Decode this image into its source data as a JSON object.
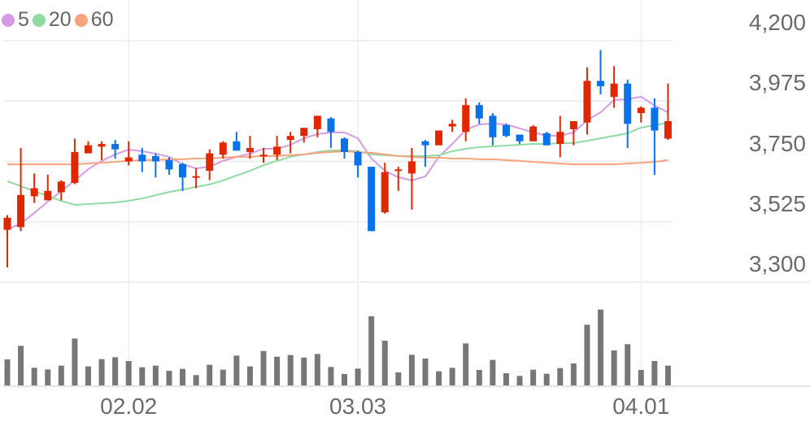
{
  "chart_data": {
    "type": "candlestick",
    "title": "",
    "legend": {
      "placement": "top-left",
      "items": [
        {
          "label": "5",
          "color": "#d69ae6"
        },
        {
          "label": "20",
          "color": "#8fdca2"
        },
        {
          "label": "60",
          "color": "#f5a47c"
        }
      ]
    },
    "colors": {
      "up": "#e02800",
      "down": "#0a72e6",
      "volume": "#777777",
      "grid": "#eeeeee"
    },
    "ylim": [
      3300,
      4200
    ],
    "y_ticks": [
      "4,200",
      "3,975",
      "3,750",
      "3,525",
      "3,300"
    ],
    "y_tick_values": [
      4200,
      3975,
      3750,
      3525,
      3300
    ],
    "x_ticks": [
      {
        "label": "02.02",
        "index": 9
      },
      {
        "label": "03.03",
        "index": 26
      },
      {
        "label": "04.01",
        "index": 47
      }
    ],
    "grid": true,
    "ohlc": [
      [
        3495,
        3550,
        3355,
        3540
      ],
      [
        3505,
        3800,
        3490,
        3625
      ],
      [
        3620,
        3705,
        3595,
        3650
      ],
      [
        3605,
        3700,
        3605,
        3640
      ],
      [
        3635,
        3680,
        3605,
        3675
      ],
      [
        3670,
        3835,
        3665,
        3785
      ],
      [
        3780,
        3825,
        3780,
        3810
      ],
      [
        3805,
        3825,
        3755,
        3815
      ],
      [
        3815,
        3830,
        3760,
        3795
      ],
      [
        3750,
        3825,
        3735,
        3765
      ],
      [
        3775,
        3800,
        3710,
        3750
      ],
      [
        3770,
        3780,
        3690,
        3750
      ],
      [
        3755,
        3765,
        3700,
        3720
      ],
      [
        3740,
        3745,
        3640,
        3690
      ],
      [
        3690,
        3725,
        3650,
        3695
      ],
      [
        3715,
        3795,
        3680,
        3780
      ],
      [
        3775,
        3825,
        3760,
        3820
      ],
      [
        3825,
        3860,
        3790,
        3790
      ],
      [
        3785,
        3845,
        3760,
        3800
      ],
      [
        3770,
        3800,
        3745,
        3775
      ],
      [
        3775,
        3845,
        3755,
        3805
      ],
      [
        3830,
        3860,
        3780,
        3845
      ],
      [
        3845,
        3875,
        3820,
        3875
      ],
      [
        3870,
        3920,
        3840,
        3920
      ],
      [
        3910,
        3915,
        3800,
        3860
      ],
      [
        3835,
        3840,
        3760,
        3785
      ],
      [
        3785,
        3790,
        3690,
        3735
      ],
      [
        3730,
        3730,
        3490,
        3490
      ],
      [
        3560,
        3745,
        3555,
        3710
      ],
      [
        3715,
        3730,
        3640,
        3720
      ],
      [
        3705,
        3800,
        3570,
        3750
      ],
      [
        3825,
        3830,
        3730,
        3810
      ],
      [
        3810,
        3865,
        3810,
        3865
      ],
      [
        3880,
        3905,
        3860,
        3890
      ],
      [
        3860,
        3985,
        3825,
        3960
      ],
      [
        3960,
        3970,
        3890,
        3910
      ],
      [
        3920,
        3930,
        3810,
        3840
      ],
      [
        3885,
        3890,
        3840,
        3845
      ],
      [
        3850,
        3850,
        3815,
        3825
      ],
      [
        3825,
        3885,
        3825,
        3880
      ],
      [
        3855,
        3860,
        3810,
        3810
      ],
      [
        3815,
        3920,
        3765,
        3860
      ],
      [
        3870,
        3900,
        3810,
        3900
      ],
      [
        3895,
        4100,
        3850,
        4050
      ],
      [
        4050,
        4165,
        4000,
        4030
      ],
      [
        3990,
        4105,
        3950,
        4040
      ],
      [
        4040,
        4055,
        3800,
        3890
      ],
      [
        3930,
        3955,
        3895,
        3950
      ],
      [
        3950,
        3985,
        3700,
        3865
      ],
      [
        3835,
        4040,
        3830,
        3900
      ]
    ],
    "ma": [
      {
        "name": "5",
        "values": [
          3497,
          3518,
          3558,
          3600,
          3639,
          3679,
          3721,
          3752,
          3776,
          3794,
          3788,
          3779,
          3767,
          3739,
          3724,
          3730,
          3752,
          3767,
          3779,
          3797,
          3797,
          3812,
          3836,
          3852,
          3858,
          3858,
          3836,
          3761,
          3715,
          3691,
          3679,
          3694,
          3767,
          3815,
          3867,
          3888,
          3891,
          3888,
          3873,
          3858,
          3846,
          3846,
          3858,
          3903,
          3933,
          3979,
          3982,
          3991,
          3958,
          3933
        ]
      },
      {
        "name": "20",
        "values": [
          3676,
          3658,
          3639,
          3621,
          3603,
          3588,
          3591,
          3594,
          3597,
          3603,
          3612,
          3624,
          3636,
          3645,
          3655,
          3664,
          3679,
          3697,
          3715,
          3736,
          3752,
          3767,
          3776,
          3785,
          3791,
          3791,
          3788,
          3776,
          3773,
          3770,
          3770,
          3770,
          3773,
          3788,
          3797,
          3803,
          3806,
          3809,
          3812,
          3815,
          3815,
          3818,
          3818,
          3827,
          3836,
          3845,
          3855,
          3876,
          3885,
          3894
        ]
      },
      {
        "name": "60",
        "values": [
          3739,
          3739,
          3739,
          3739,
          3739,
          3739,
          3742,
          3745,
          3748,
          3752,
          3755,
          3755,
          3758,
          3758,
          3761,
          3761,
          3764,
          3767,
          3767,
          3770,
          3770,
          3773,
          3776,
          3782,
          3785,
          3788,
          3785,
          3782,
          3776,
          3770,
          3767,
          3764,
          3764,
          3761,
          3761,
          3758,
          3758,
          3755,
          3752,
          3748,
          3745,
          3742,
          3739,
          3739,
          3739,
          3739,
          3742,
          3745,
          3748,
          3755
        ]
      }
    ],
    "volume_relative": [
      96,
      146,
      65,
      59,
      73,
      173,
      70,
      97,
      104,
      90,
      67,
      73,
      54,
      61,
      38,
      76,
      58,
      110,
      70,
      127,
      106,
      112,
      103,
      116,
      68,
      42,
      62,
      255,
      165,
      48,
      113,
      99,
      52,
      65,
      155,
      57,
      94,
      45,
      35,
      58,
      43,
      64,
      81,
      224,
      280,
      129,
      152,
      57,
      90,
      73
    ]
  }
}
